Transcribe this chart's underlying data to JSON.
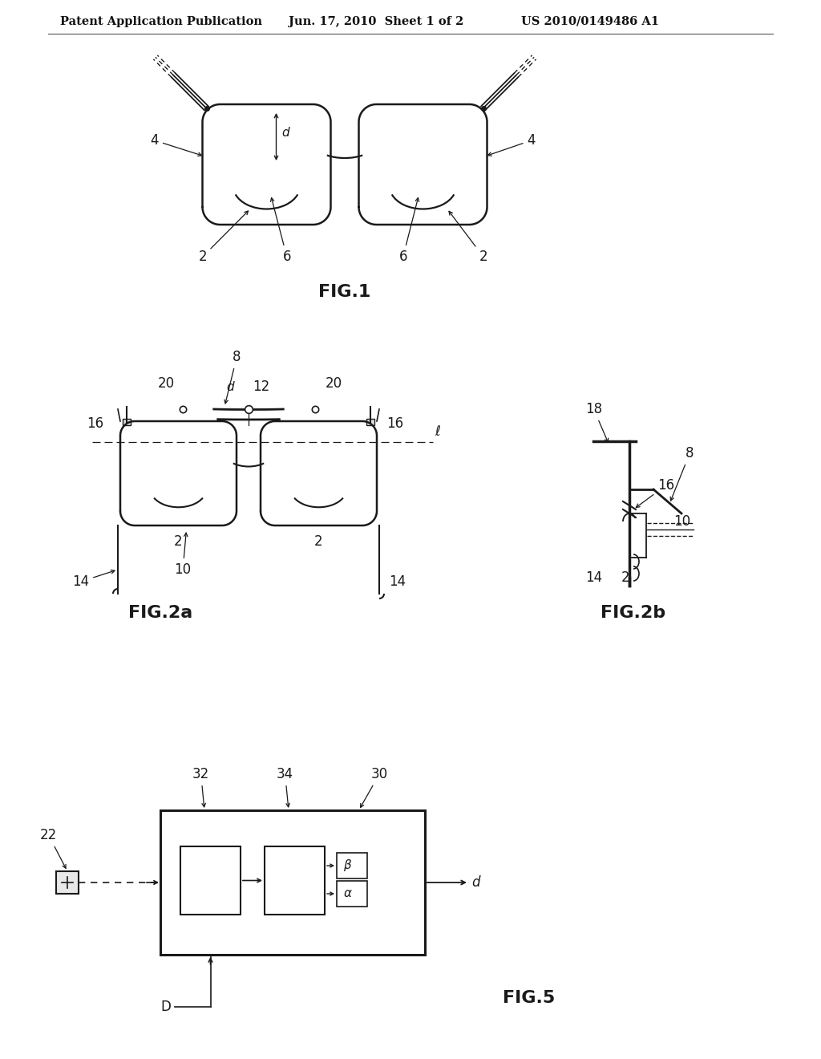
{
  "header_left": "Patent Application Publication",
  "header_mid": "Jun. 17, 2010  Sheet 1 of 2",
  "header_right": "US 2010/0149486 A1",
  "fig1_caption": "FIG.1",
  "fig2a_caption": "FIG.2a",
  "fig2b_caption": "FIG.2b",
  "fig5_caption": "FIG.5",
  "bg_color": "#ffffff",
  "line_color": "#1a1a1a",
  "header_fontsize": 10.5,
  "caption_fontsize": 16,
  "label_fontsize": 12
}
